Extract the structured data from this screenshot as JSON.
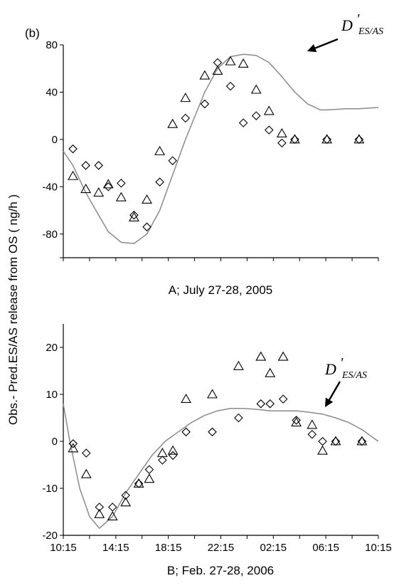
{
  "figure": {
    "panel_label": "(b)",
    "ylabel": "Obs.- Pred.ES/AS release from OS ( ng/h )",
    "annotation_main": "D",
    "annotation_prime": "'",
    "annotation_sub": "ES/AS"
  },
  "colors": {
    "curve": "#8a8a8a",
    "marker": "#000000",
    "axis": "#000000"
  },
  "chart_data": [
    {
      "type": "scatter",
      "title": "A;  July 27-28, 2005",
      "xlabel": "",
      "ylabel": "Obs.- Pred.ES/AS release from OS ( ng/h )",
      "xlim": [
        0,
        24.5
      ],
      "ylim": [
        -100,
        80
      ],
      "yticks": [
        80,
        40,
        0,
        -40,
        -80
      ],
      "ytick_labels": [
        "80",
        "40",
        "0",
        "-40",
        "-80"
      ],
      "x_tick_count": 13,
      "series": [
        {
          "marker": "triangle",
          "x": [
            0.75,
            1.75,
            2.75,
            3.5,
            4.5,
            5.5,
            6.5,
            7.5,
            8.5,
            9.5,
            11.0,
            12.0,
            13.0,
            14.0,
            15.0,
            16.0,
            17.0,
            18.0,
            20.5,
            23.0
          ],
          "y": [
            -31,
            -42,
            -45,
            -38,
            -49,
            -66,
            -51,
            -10,
            13,
            35,
            54,
            58,
            66,
            64,
            42,
            24,
            5,
            0,
            0,
            0
          ]
        },
        {
          "marker": "diamond",
          "x": [
            0.75,
            1.75,
            2.75,
            3.5,
            4.5,
            5.5,
            6.5,
            7.5,
            8.5,
            9.5,
            11.0,
            12.0,
            13.0,
            14.0,
            15.0,
            16.0,
            17.0,
            18.0,
            20.5,
            23.0
          ],
          "y": [
            -8,
            -22,
            -22,
            -40,
            -37,
            -64,
            -74,
            -36,
            -18,
            18,
            30,
            65,
            45,
            14,
            20,
            8,
            -3,
            0,
            0,
            0
          ]
        },
        {
          "type": "line",
          "x": [
            0.0,
            0.75,
            1.75,
            2.75,
            3.5,
            4.5,
            5.5,
            6.5,
            7.5,
            8.5,
            9.5,
            11.0,
            12.0,
            13.0,
            14.0,
            15.0,
            16.0,
            17.0,
            18.0,
            19.0,
            20.0,
            20.5,
            22.0,
            23.0,
            24.5
          ],
          "y": [
            -10,
            -22,
            -45,
            -64,
            -78,
            -87,
            -88,
            -80,
            -60,
            -30,
            0,
            40,
            60,
            70,
            72,
            71,
            65,
            53,
            40,
            30,
            25,
            25,
            26,
            26,
            27
          ]
        }
      ]
    },
    {
      "type": "scatter",
      "title": "B; Feb. 27-28, 2006",
      "xlabel": "",
      "xlim": [
        10.25,
        34.25
      ],
      "ylim": [
        -20,
        25
      ],
      "yticks": [
        20,
        10,
        0,
        -10,
        -20
      ],
      "ytick_labels": [
        "20",
        "10",
        "0",
        "-10",
        "-20"
      ],
      "xticks": [
        10.25,
        14.25,
        18.25,
        22.25,
        26.25,
        30.25,
        34.25
      ],
      "xtick_labels": [
        "10:15",
        "14:15",
        "18:15",
        "22:15",
        "02:15",
        "06:15",
        "10:15"
      ],
      "series": [
        {
          "marker": "triangle",
          "x": [
            11.0,
            12.0,
            13.0,
            14.0,
            15.0,
            16.0,
            16.8,
            17.8,
            18.6,
            19.6,
            21.6,
            23.6,
            25.3,
            26.0,
            27.0,
            28.0,
            29.2,
            30.0,
            31.0,
            33.0
          ],
          "y": [
            -1.5,
            -7,
            -15.5,
            -16,
            -13,
            -9,
            -8,
            -2.5,
            -2,
            9,
            10,
            16,
            18,
            14.5,
            18,
            4,
            3.5,
            -2,
            0,
            0
          ]
        },
        {
          "marker": "diamond",
          "x": [
            11.0,
            12.0,
            13.0,
            14.0,
            15.0,
            16.0,
            16.8,
            17.8,
            18.6,
            19.6,
            21.6,
            23.6,
            25.3,
            26.0,
            27.0,
            28.0,
            29.2,
            30.0,
            31.0,
            33.0
          ],
          "y": [
            -0.5,
            -2.5,
            -14,
            -14,
            -11.5,
            -9,
            -6,
            -4,
            -3,
            2,
            2,
            5,
            8,
            8,
            9,
            4.5,
            1.5,
            0,
            0,
            0
          ]
        },
        {
          "type": "line",
          "x": [
            10.25,
            10.75,
            11.5,
            12.25,
            13.0,
            14.0,
            15.0,
            16.0,
            17.0,
            18.0,
            19.0,
            20.0,
            21.0,
            22.0,
            23.0,
            24.0,
            25.0,
            26.0,
            27.0,
            28.0,
            29.0,
            30.0,
            31.0,
            32.0,
            33.0,
            34.25
          ],
          "y": [
            8,
            0,
            -10,
            -16,
            -18.5,
            -16,
            -11,
            -7,
            -3,
            0,
            2,
            4,
            5.5,
            6.5,
            7,
            7,
            6.8,
            6.5,
            6.5,
            6.5,
            6.2,
            5.8,
            5,
            4,
            2.5,
            0
          ]
        }
      ]
    }
  ]
}
